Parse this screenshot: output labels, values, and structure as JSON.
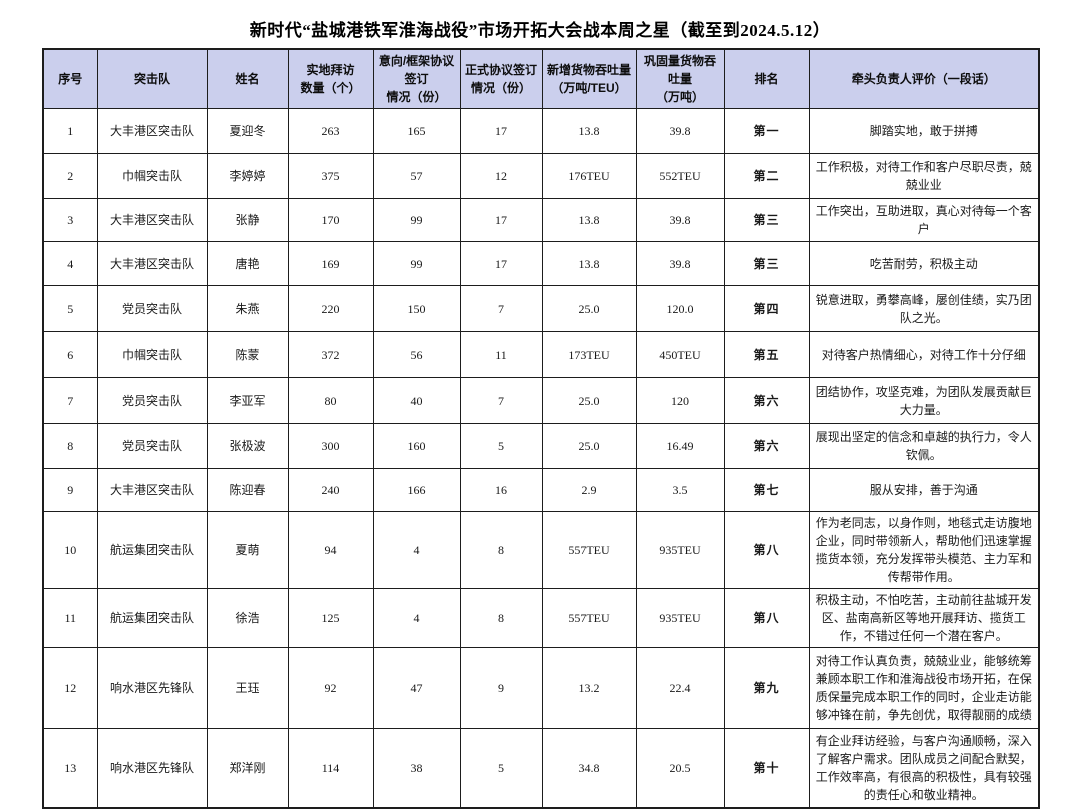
{
  "page": {
    "title": "新时代“盐城港铁军淮海战役”市场开拓大会战本周之星（截至到2024.5.12）"
  },
  "colors": {
    "header_bg": "#cbcfed",
    "border": "#1d1d1d",
    "text": "#191919"
  },
  "table": {
    "columns": [
      {
        "key": "no",
        "label": "序号"
      },
      {
        "key": "team",
        "label": "突击队"
      },
      {
        "key": "name",
        "label": "姓名"
      },
      {
        "key": "visits",
        "label": "实地拜访\n数量（个）"
      },
      {
        "key": "intent",
        "label": "意向/框架协议签订\n情况（份）"
      },
      {
        "key": "formal",
        "label": "正式协议签订\n情况（份）"
      },
      {
        "key": "new_tp",
        "label": "新增货物吞吐量\n（万吨/TEU）"
      },
      {
        "key": "cons_tp",
        "label": "巩固量货物吞吐量\n（万吨）"
      },
      {
        "key": "rank",
        "label": "排名"
      },
      {
        "key": "eval",
        "label": "牵头负责人评价（一段话）"
      }
    ],
    "rows": [
      {
        "no": "1",
        "team": "大丰港区突击队",
        "name": "夏迎冬",
        "visits": "263",
        "intent": "165",
        "formal": "17",
        "new_tp": "13.8",
        "cons_tp": "39.8",
        "rank": "第一",
        "eval": "脚踏实地，敢于拼搏"
      },
      {
        "no": "2",
        "team": "巾帼突击队",
        "name": "李婷婷",
        "visits": "375",
        "intent": "57",
        "formal": "12",
        "new_tp": "176TEU",
        "cons_tp": "552TEU",
        "rank": "第二",
        "eval": "工作积极，对待工作和客户尽职尽责，兢兢业业"
      },
      {
        "no": "3",
        "team": "大丰港区突击队",
        "name": "张静",
        "visits": "170",
        "intent": "99",
        "formal": "17",
        "new_tp": "13.8",
        "cons_tp": "39.8",
        "rank": "第三",
        "eval": "工作突出，互助进取，真心对待每一个客户"
      },
      {
        "no": "4",
        "team": "大丰港区突击队",
        "name": "唐艳",
        "visits": "169",
        "intent": "99",
        "formal": "17",
        "new_tp": "13.8",
        "cons_tp": "39.8",
        "rank": "第三",
        "eval": "吃苦耐劳，积极主动"
      },
      {
        "no": "5",
        "team": "党员突击队",
        "name": "朱燕",
        "visits": "220",
        "intent": "150",
        "formal": "7",
        "new_tp": "25.0",
        "cons_tp": "120.0",
        "rank": "第四",
        "eval": "锐意进取，勇攀高峰，屡创佳绩，实乃团队之光。"
      },
      {
        "no": "6",
        "team": "巾帼突击队",
        "name": "陈蒙",
        "visits": "372",
        "intent": "56",
        "formal": "11",
        "new_tp": "173TEU",
        "cons_tp": "450TEU",
        "rank": "第五",
        "eval": "对待客户热情细心，对待工作十分仔细"
      },
      {
        "no": "7",
        "team": "党员突击队",
        "name": "李亚军",
        "visits": "80",
        "intent": "40",
        "formal": "7",
        "new_tp": "25.0",
        "cons_tp": "120",
        "rank": "第六",
        "eval": "团结协作，攻坚克难，为团队发展贡献巨大力量。"
      },
      {
        "no": "8",
        "team": "党员突击队",
        "name": "张极波",
        "visits": "300",
        "intent": "160",
        "formal": "5",
        "new_tp": "25.0",
        "cons_tp": "16.49",
        "rank": "第六",
        "eval": "展现出坚定的信念和卓越的执行力，令人钦佩。"
      },
      {
        "no": "9",
        "team": "大丰港区突击队",
        "name": "陈迎春",
        "visits": "240",
        "intent": "166",
        "formal": "16",
        "new_tp": "2.9",
        "cons_tp": "3.5",
        "rank": "第七",
        "eval": "服从安排，善于沟通"
      },
      {
        "no": "10",
        "team": "航运集团突击队",
        "name": "夏萌",
        "visits": "94",
        "intent": "4",
        "formal": "8",
        "new_tp": "557TEU",
        "cons_tp": "935TEU",
        "rank": "第八",
        "eval": "作为老同志，以身作则，地毯式走访腹地企业，同时带领新人，帮助他们迅速掌握揽货本领，充分发挥带头模范、主力军和传帮带作用。"
      },
      {
        "no": "11",
        "team": "航运集团突击队",
        "name": "徐浩",
        "visits": "125",
        "intent": "4",
        "formal": "8",
        "new_tp": "557TEU",
        "cons_tp": "935TEU",
        "rank": "第八",
        "eval": "积极主动，不怕吃苦，主动前往盐城开发区、盐南高新区等地开展拜访、揽货工作，不错过任何一个潜在客户。"
      },
      {
        "no": "12",
        "team": "响水港区先锋队",
        "name": "王珏",
        "visits": "92",
        "intent": "47",
        "formal": "9",
        "new_tp": "13.2",
        "cons_tp": "22.4",
        "rank": "第九",
        "eval": "对待工作认真负责，兢兢业业，能够统筹兼顾本职工作和淮海战役市场开拓，在保质保量完成本职工作的同时，企业走访能够冲锋在前，争先创优，取得靓丽的成绩"
      },
      {
        "no": "13",
        "team": "响水港区先锋队",
        "name": "郑洋刚",
        "visits": "114",
        "intent": "38",
        "formal": "5",
        "new_tp": "34.8",
        "cons_tp": "20.5",
        "rank": "第十",
        "eval": "有企业拜访经验，与客户沟通顺畅，深入了解客户需求。团队成员之间配合默契，工作效率高，有很高的积极性，具有较强的责任心和敬业精神。"
      }
    ]
  }
}
